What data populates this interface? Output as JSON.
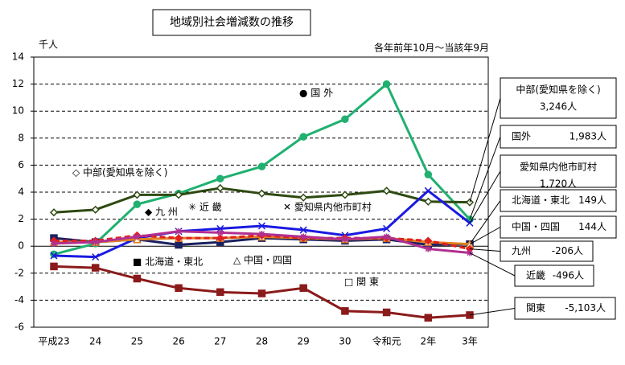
{
  "chart_data": {
    "type": "line",
    "title": "地域別社会増減数の推移",
    "y_unit": "千人",
    "subtitle": "各年前年10月～当該年9月",
    "categories": [
      "平成23",
      "24",
      "25",
      "26",
      "27",
      "28",
      "29",
      "30",
      "令和元",
      "2年",
      "3年"
    ],
    "ylim": [
      -6,
      14
    ],
    "yticks": [
      -6,
      -4,
      -2,
      0,
      2,
      4,
      6,
      8,
      10,
      12,
      14
    ],
    "grid": true,
    "series": [
      {
        "name": "● 国 外",
        "color": "#20b070",
        "marker": "circle",
        "values": [
          -0.6,
          0.2,
          3.1,
          3.9,
          5.0,
          5.9,
          8.1,
          9.4,
          12.0,
          5.3,
          1.983
        ],
        "callout": [
          "国外",
          "1,983人"
        ]
      },
      {
        "name": "◇ 中部(愛知県を除く)",
        "color": "#2e4a12",
        "marker": "diamond",
        "values": [
          2.5,
          2.7,
          3.8,
          3.8,
          4.3,
          3.9,
          3.6,
          3.8,
          4.1,
          3.3,
          3.246
        ],
        "callout": [
          "中部(愛知県を除く)",
          "3,246人"
        ]
      },
      {
        "name": "✕ 愛知県内他市町村",
        "color": "#1a1ae0",
        "marker": "cross",
        "values": [
          -0.7,
          -0.8,
          0.6,
          1.1,
          1.3,
          1.5,
          1.2,
          0.8,
          1.3,
          4.1,
          1.72
        ],
        "callout": [
          "愛知県内他市町村",
          "1,720人"
        ]
      },
      {
        "name": "■ 北海道・東北",
        "color": "#1a2060",
        "marker": "square",
        "values": [
          0.6,
          0.3,
          0.5,
          0.1,
          0.3,
          0.6,
          0.5,
          0.4,
          0.5,
          0.1,
          0.149
        ],
        "callout": [
          "北海道・東北",
          "149人"
        ]
      },
      {
        "name": "△ 中国・四国",
        "color": "#e08020",
        "marker": "triangle",
        "values": [
          0.3,
          0.3,
          0.5,
          0.6,
          0.6,
          0.7,
          0.6,
          0.5,
          0.6,
          0.3,
          0.144
        ],
        "callout": [
          "中国・四国",
          "144人"
        ]
      },
      {
        "name": "◆ 九 州",
        "color": "#e02020",
        "marker": "fdiamond",
        "dashed": true,
        "values": [
          0.4,
          0.4,
          0.8,
          0.6,
          0.6,
          0.8,
          0.6,
          0.6,
          0.6,
          0.4,
          -0.206
        ],
        "callout": [
          "九州",
          "-206人"
        ]
      },
      {
        "name": "✳ 近 畿",
        "color": "#b03090",
        "marker": "star",
        "values": [
          0.2,
          0.3,
          0.7,
          1.1,
          1.0,
          0.9,
          0.7,
          0.5,
          0.7,
          -0.2,
          -0.496
        ],
        "callout": [
          "近畿",
          "-496人"
        ]
      },
      {
        "name": "□ 関 東",
        "color": "#8b1a1a",
        "marker": "square",
        "values": [
          -1.5,
          -1.6,
          -2.4,
          -3.1,
          -3.4,
          -3.5,
          -3.1,
          -4.8,
          -4.9,
          -5.3,
          -5.103
        ],
        "callout": [
          "関東",
          "-5,103人"
        ]
      }
    ]
  }
}
